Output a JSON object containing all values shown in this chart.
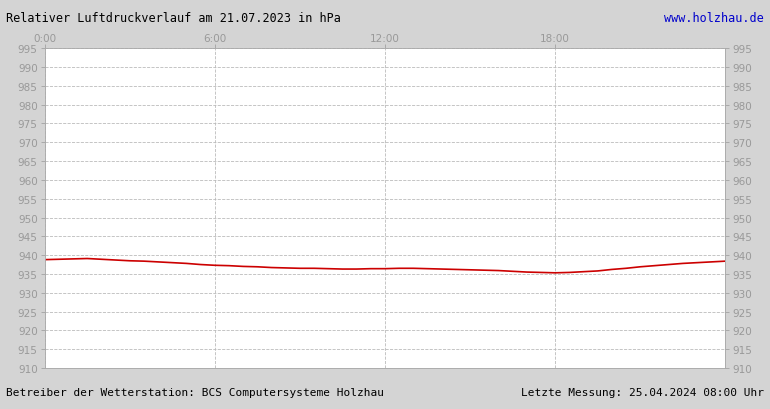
{
  "title": "Relativer Luftdruckverlauf am 21.07.2023 in hPa",
  "url_text": "www.holzhau.de",
  "footer_left": "Betreiber der Wetterstation: BCS Computersysteme Holzhau",
  "footer_right": "Letzte Messung: 25.04.2024 08:00 Uhr",
  "ylim": [
    910,
    995
  ],
  "ytick_step": 5,
  "xlim": [
    0,
    1440
  ],
  "xtick_positions": [
    0,
    360,
    720,
    1080
  ],
  "xtick_labels": [
    "0:00",
    "6:00",
    "12:00",
    "18:00"
  ],
  "line_color": "#cc0000",
  "line_width": 1.2,
  "bg_color": "#d4d4d4",
  "plot_bg_color": "#ffffff",
  "grid_color": "#bbbbbb",
  "title_color": "#000000",
  "url_color": "#0000cc",
  "axis_label_color": "#999999",
  "pressure_x": [
    0,
    30,
    60,
    90,
    120,
    150,
    180,
    210,
    240,
    270,
    300,
    330,
    360,
    390,
    420,
    450,
    480,
    510,
    540,
    570,
    600,
    630,
    660,
    690,
    720,
    750,
    780,
    810,
    840,
    870,
    900,
    930,
    960,
    990,
    1020,
    1050,
    1080,
    1110,
    1140,
    1170,
    1200,
    1230,
    1260,
    1290,
    1320,
    1350,
    1380,
    1410,
    1440
  ],
  "pressure_y": [
    938.8,
    938.9,
    939.0,
    939.1,
    938.9,
    938.7,
    938.5,
    938.4,
    938.2,
    938.0,
    937.8,
    937.5,
    937.3,
    937.2,
    937.0,
    936.9,
    936.7,
    936.6,
    936.5,
    936.5,
    936.4,
    936.3,
    936.3,
    936.4,
    936.4,
    936.5,
    936.5,
    936.4,
    936.3,
    936.2,
    936.1,
    936.0,
    935.9,
    935.7,
    935.5,
    935.4,
    935.3,
    935.4,
    935.6,
    935.8,
    936.2,
    936.5,
    936.9,
    937.2,
    937.5,
    937.8,
    938.0,
    938.2,
    938.4
  ]
}
